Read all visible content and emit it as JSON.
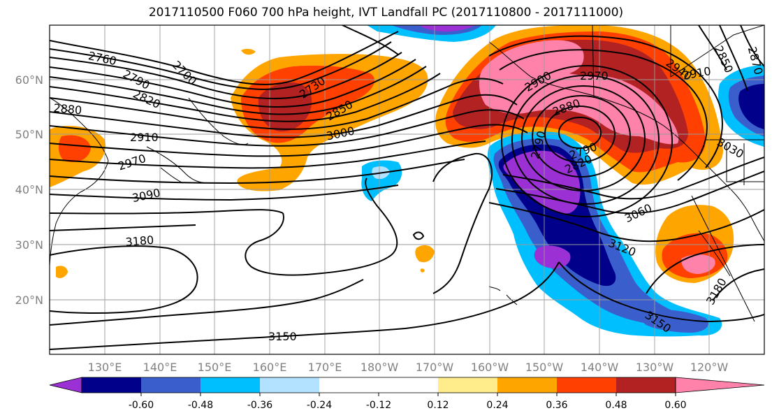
{
  "title": "2017110500 F060 700 hPa height, IVT Landfall PC (2017110800 - 2017111000)",
  "lat_ticks": [
    "60°N",
    "50°N",
    "40°N",
    "30°N",
    "20°N"
  ],
  "lon_ticks": [
    "130°E",
    "140°E",
    "150°E",
    "160°E",
    "170°E",
    "180°W",
    "170°W",
    "160°W",
    "150°W",
    "140°W",
    "130°W",
    "120°W"
  ],
  "contour_labels": [
    "2760",
    "2700",
    "2790",
    "2820",
    "2880",
    "2730",
    "2850",
    "3000",
    "2910",
    "2970",
    "3090",
    "3180",
    "3150",
    "2900",
    "2970",
    "2880",
    "2940",
    "2910",
    "2850",
    "2870",
    "2790",
    "2790",
    "2820",
    "3060",
    "3120",
    "3030",
    "3180",
    "3150"
  ],
  "colorbar": {
    "colors": [
      "#9b30d4",
      "#00008b",
      "#3a5fcd",
      "#00bfff",
      "#b2e2ff",
      "#ffffff",
      "#ffec8b",
      "#ffa500",
      "#ff4000",
      "#b22222",
      "#ff82ab"
    ],
    "tick_labels": [
      "-0.60",
      "-0.48",
      "-0.36",
      "-0.24",
      "-0.12",
      "0.12",
      "0.24",
      "0.36",
      "0.48",
      "0.60"
    ]
  }
}
